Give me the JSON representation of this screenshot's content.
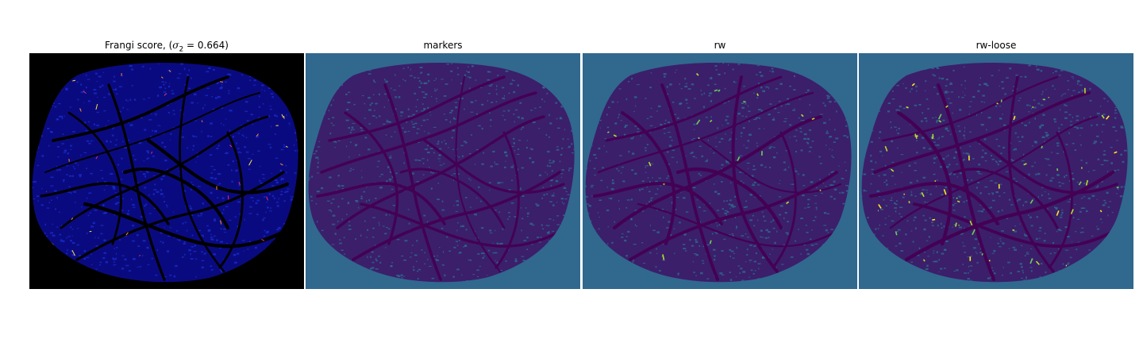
{
  "figure": {
    "panels": [
      {
        "id": "frangi",
        "title_prefix": "Frangi score, (",
        "title_symbol": "σ",
        "title_subscript": "2",
        "title_suffix": " = 0.664)",
        "background": "#000000",
        "tissue_color": "#0a0a80",
        "vessel_color": "#000000",
        "highlight_colors": [
          "#e8306a",
          "#ff8c2a",
          "#ffe040"
        ]
      },
      {
        "id": "markers",
        "title": "markers",
        "background": "#31688e",
        "tissue_color": "#3b1f6b",
        "vessel_color": "#440154",
        "highlight_colors": []
      },
      {
        "id": "rw",
        "title": "rw",
        "background": "#31688e",
        "tissue_color": "#3b1f6b",
        "vessel_color": "#440154",
        "highlight_colors": [
          "#6ece58",
          "#b5de2b"
        ]
      },
      {
        "id": "rw-loose",
        "title": "rw-loose",
        "background": "#31688e",
        "tissue_color": "#3b1f6b",
        "vessel_color": "#440154",
        "highlight_colors": [
          "#6ece58",
          "#b5de2b",
          "#fde725"
        ]
      }
    ]
  }
}
